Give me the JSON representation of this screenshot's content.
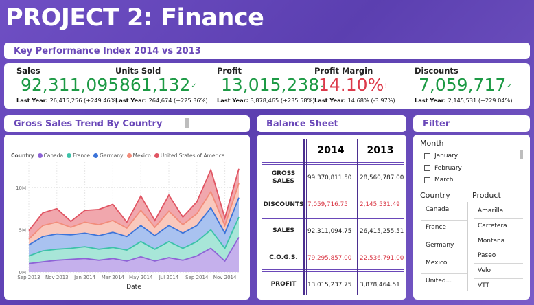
{
  "page": {
    "title": "PROJECT 2: Finance"
  },
  "kpi_header": "Key Performance Index 2014 vs 2013",
  "kpis": [
    {
      "label": "Sales",
      "value": "92,311,095",
      "mark": "✓",
      "status": "good",
      "last_prefix": "Last Year:",
      "last": "26,415,256 (+249.46%)"
    },
    {
      "label": "Units Sold",
      "value": "861,132",
      "mark": "✓",
      "status": "good",
      "last_prefix": "Last Year:",
      "last": "264,674 (+225.36%)"
    },
    {
      "label": "Profit",
      "value": "13,015,238",
      "mark": "✓",
      "status": "good",
      "last_prefix": "Last Year:",
      "last": "3,878,465 (+235.58%)"
    },
    {
      "label": "Profit Margin",
      "value": "14.10%",
      "mark": "!",
      "status": "bad",
      "last_prefix": "Last Year:",
      "last": "14.68% (-3.97%)"
    },
    {
      "label": "Discounts",
      "value": "7,059,717",
      "mark": "✓",
      "status": "good",
      "last_prefix": "Last Year:",
      "last": "2,145,531 (+229.04%)"
    }
  ],
  "trend": {
    "header": "Gross Sales Trend By Country",
    "legend_title": "Country",
    "x_label": "Date"
  },
  "chart_data": {
    "type": "area",
    "stacked": true,
    "title": "Gross Sales Trend By Country",
    "xlabel": "Date",
    "ylabel": "",
    "ylim": [
      0,
      13000000
    ],
    "y_ticks": [
      0,
      5000000,
      10000000
    ],
    "y_tick_labels": [
      "0M",
      "5M",
      "10M"
    ],
    "x_tick_labels": [
      "Sep 2013",
      "Nov 2013",
      "Jan 2014",
      "Mar 2014",
      "May 2014",
      "Jul 2014",
      "Sep 2014",
      "Nov 2014"
    ],
    "x": [
      "2013-09",
      "2013-10",
      "2013-11",
      "2013-12",
      "2014-01",
      "2014-02",
      "2014-03",
      "2014-04",
      "2014-05",
      "2014-06",
      "2014-07",
      "2014-08",
      "2014-09",
      "2014-10",
      "2014-11",
      "2014-12"
    ],
    "series": [
      {
        "name": "Canada",
        "color": "#8e63d6",
        "fill": "#c5b0ec",
        "values": [
          1000000,
          1200000,
          1400000,
          1500000,
          1600000,
          1400000,
          1600000,
          1300000,
          1800000,
          1300000,
          1700000,
          1400000,
          1900000,
          2800000,
          1300000,
          4100000
        ]
      },
      {
        "name": "France",
        "color": "#3cc2a8",
        "fill": "#a8e6d8",
        "values": [
          900000,
          1300000,
          1300000,
          1300000,
          1400000,
          1300000,
          1300000,
          1300000,
          1800000,
          1400000,
          1900000,
          1400000,
          1700000,
          2200000,
          1500000,
          2400000
        ]
      },
      {
        "name": "Germany",
        "color": "#3b73d9",
        "fill": "#a9c2f0",
        "values": [
          1300000,
          1700000,
          1800000,
          1600000,
          1600000,
          1600000,
          1800000,
          1600000,
          1900000,
          1600000,
          1900000,
          1800000,
          1900000,
          2600000,
          1800000,
          2300000
        ]
      },
      {
        "name": "Mexico",
        "color": "#f28c7a",
        "fill": "#f9c8bd",
        "values": [
          700000,
          1300000,
          1400000,
          900000,
          1300000,
          1300000,
          1400000,
          1000000,
          1800000,
          1000000,
          1700000,
          1000000,
          1400000,
          1900000,
          900000,
          1700000
        ]
      },
      {
        "name": "United States of America",
        "color": "#e05563",
        "fill": "#f1a7ad",
        "values": [
          1000000,
          1500000,
          1600000,
          700000,
          1400000,
          1800000,
          1900000,
          700000,
          1700000,
          800000,
          1900000,
          900000,
          1400000,
          2600000,
          900000,
          1700000
        ]
      }
    ]
  },
  "balance": {
    "header": "Balance Sheet",
    "years": [
      "2014",
      "2013"
    ],
    "rows": [
      {
        "label": "GROSS SALES",
        "v2014": "99,370,811.50",
        "v2013": "28,560,787.00",
        "red": false
      },
      {
        "label": "DISCOUNTS",
        "v2014": "7,059,716.75",
        "v2013": "2,145,531.49",
        "red": true
      },
      {
        "label": "SALES",
        "v2014": "92,311,094.75",
        "v2013": "26,415,255.51",
        "red": false
      },
      {
        "label": "C.O.G.S.",
        "v2014": "79,295,857.00",
        "v2013": "22,536,791.00",
        "red": true
      },
      {
        "label": "PROFIT",
        "v2014": "13,015,237.75",
        "v2013": "3,878,464.51",
        "red": false
      }
    ]
  },
  "filter": {
    "header": "Filter",
    "month_label": "Month",
    "months": [
      "January",
      "February",
      "March"
    ],
    "country_label": "Country",
    "countries": [
      "Canada",
      "France",
      "Germany",
      "Mexico",
      "United..."
    ],
    "product_label": "Product",
    "products": [
      "Amarilla",
      "Carretera",
      "Montana",
      "Paseo",
      "Velo",
      "VTT"
    ]
  }
}
